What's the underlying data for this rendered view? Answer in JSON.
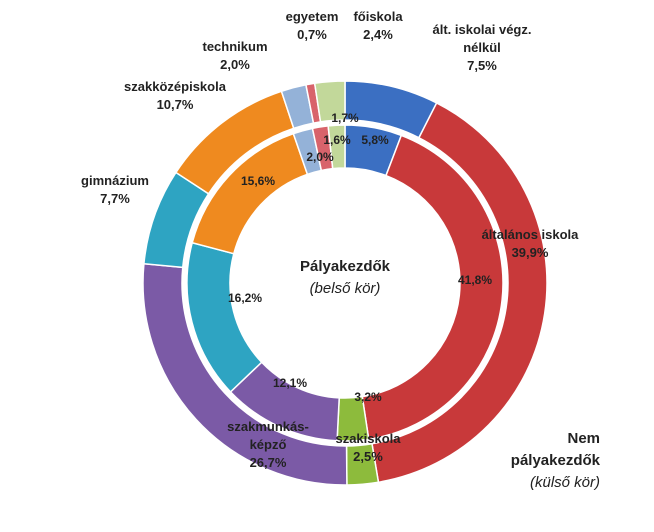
{
  "chart_data": {
    "type": "donut",
    "categories": [
      "ált. iskolai végz. nélkül",
      "általános iskola",
      "szakiskola",
      "szakmunkás-képző",
      "gimnázium",
      "szakközépiskola",
      "technikum",
      "egyetem",
      "főiskola"
    ],
    "colors": [
      "#3b6fc2",
      "#c8393a",
      "#8dbb3c",
      "#7b5aa6",
      "#2ea4c2",
      "#ef8a1f",
      "#94b2d8",
      "#d8636b",
      "#c2d89a"
    ],
    "series": [
      {
        "name": "Pályakezdők",
        "annotation": "(belső kör)",
        "values": [
          5.8,
          41.8,
          3.2,
          12.1,
          16.2,
          15.6,
          2.0,
          1.6,
          1.7
        ],
        "value_labels": [
          "5,8%",
          "41,8%",
          "3,2%",
          "12,1%",
          "16,2%",
          "15,6%",
          "2,0%",
          "1,6%",
          "1,7%"
        ]
      },
      {
        "name": "Nem pályakezdők",
        "annotation": "(külső kör)",
        "values": [
          7.5,
          39.9,
          2.5,
          26.7,
          7.7,
          10.7,
          2.0,
          0.7,
          2.4
        ],
        "value_labels": [
          "7,5%",
          "39,9%",
          "2,5%",
          "26,7%",
          "7,7%",
          "10,7%",
          "2,0%",
          "0,7%",
          "2,4%"
        ]
      }
    ]
  }
}
